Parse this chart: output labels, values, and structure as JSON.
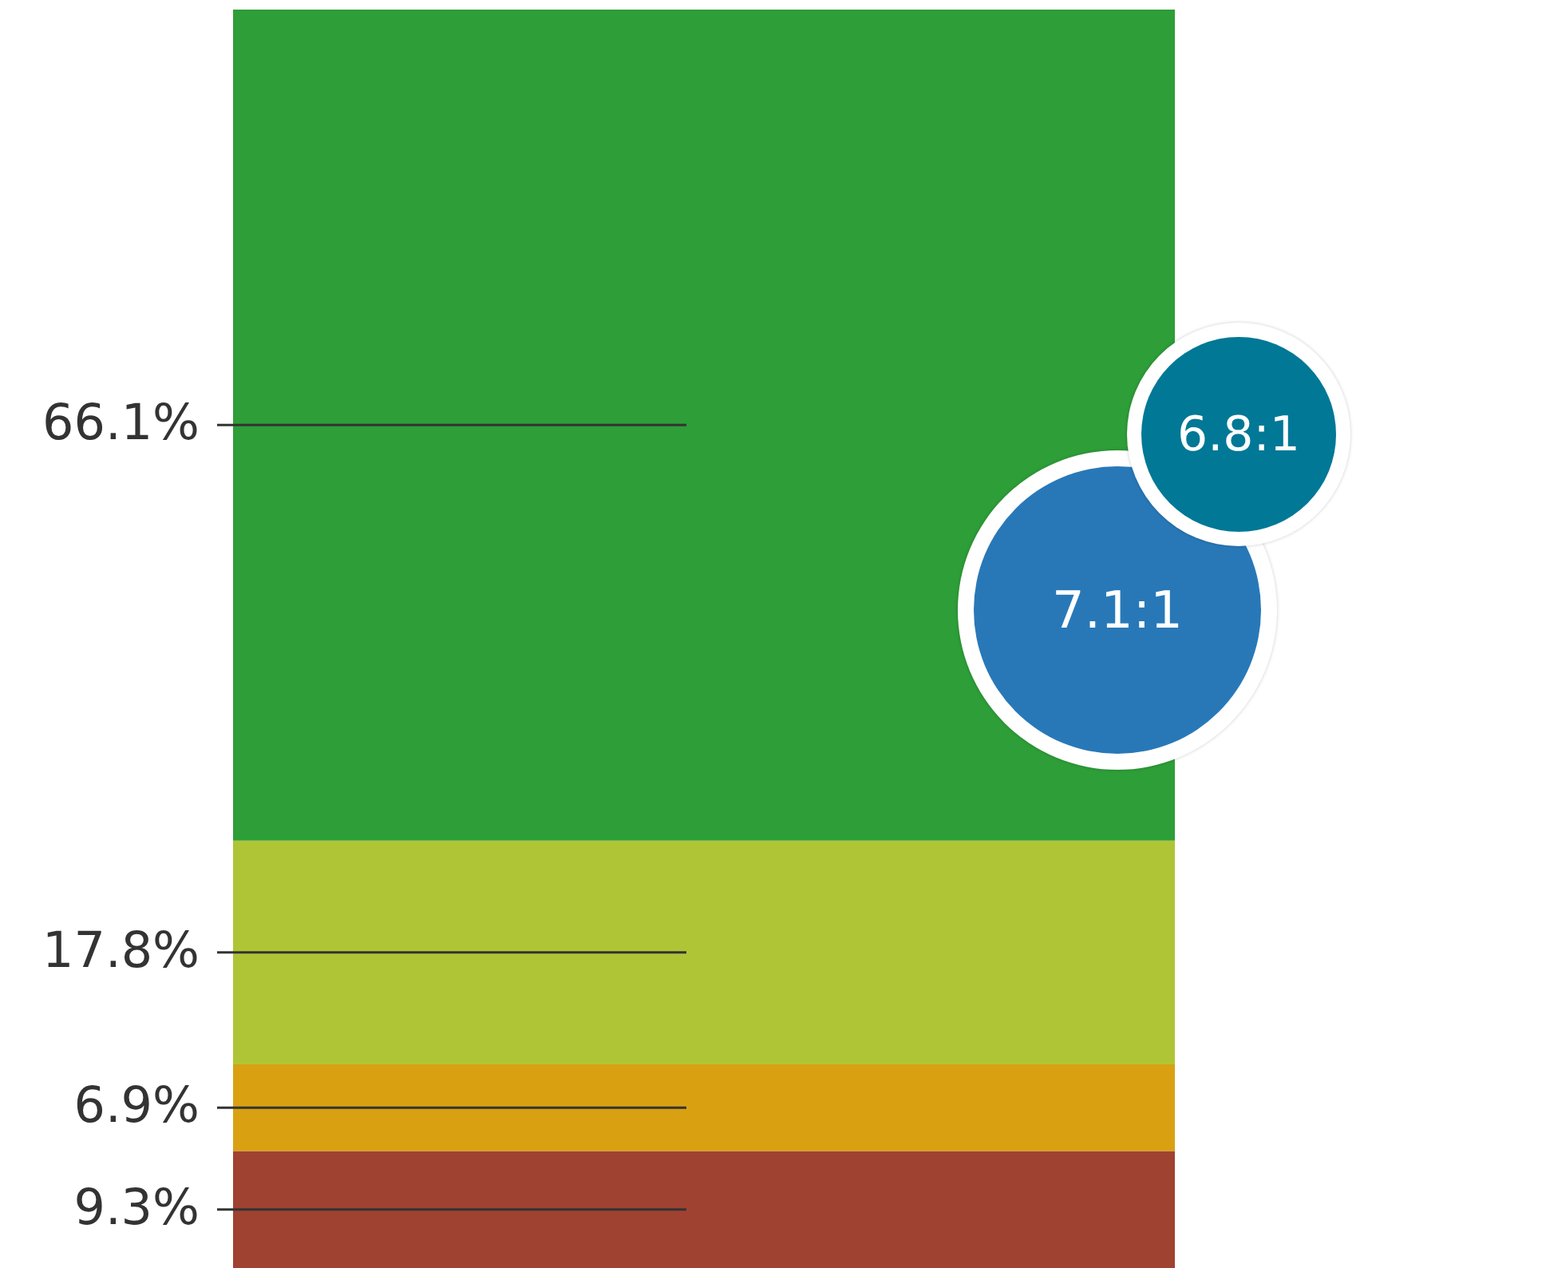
{
  "chart_data": {
    "type": "bar",
    "stacked": true,
    "categories": [
      null
    ],
    "series": [
      {
        "color": "#a04232",
        "values": [
          9.3
        ],
        "value_labels": [
          "9.3%"
        ]
      },
      {
        "color": "#d9a111",
        "values": [
          6.9
        ],
        "value_labels": [
          "6.9%"
        ]
      },
      {
        "color": "#afc535",
        "values": [
          17.8
        ],
        "value_labels": [
          "17.8%"
        ]
      },
      {
        "color": "#2e9e38",
        "values": [
          66.1
        ],
        "value_labels": [
          "66.1%"
        ]
      }
    ],
    "annotations": [
      "7.1:1",
      "6.8:1"
    ]
  }
}
